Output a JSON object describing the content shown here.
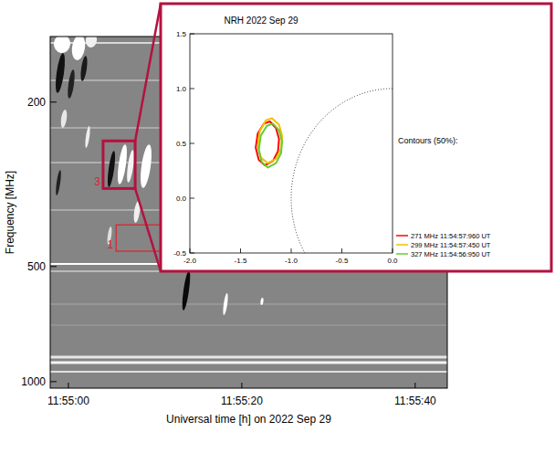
{
  "chart_data": [
    {
      "type": "spectrogram",
      "x_label": "Universal time [h] on 2022 Sep 29",
      "y_label": "Frequency [MHz]",
      "log": "y",
      "xlim": [
        42897.9,
        42943.7
      ],
      "xticks": [
        {
          "value": 42900,
          "label": "11:55:00"
        },
        {
          "value": 42920,
          "label": "11:55:20"
        },
        {
          "value": 42940,
          "label": "11:55:40"
        }
      ],
      "panels": [
        {
          "ylim": [
            140,
            480
          ],
          "yticks": [
            200
          ]
        },
        {
          "ylim": [
            495,
            1040
          ],
          "yticks": [
            500,
            1000
          ]
        }
      ],
      "annotations": [
        {
          "label": "3",
          "time": [
            42904.0,
            42907.7
          ],
          "frequency": [
            247,
            320
          ]
        },
        {
          "label": "1",
          "time": [
            42905.5,
            42911.0
          ],
          "frequency": [
            390,
            450
          ]
        }
      ]
    },
    {
      "type": "contour",
      "title": "NRH 2022 Sep 29",
      "legend_title": "Contours (50%):",
      "legend": "right",
      "xlim": [
        -2.0,
        0.0
      ],
      "ylim": [
        -0.5,
        1.5
      ],
      "xticks": [
        {
          "value": -2.0,
          "label": "-2.0"
        },
        {
          "value": -1.5,
          "label": "-1.5"
        },
        {
          "value": -1.0,
          "label": "-1.0"
        },
        {
          "value": -0.5,
          "label": "-0.5"
        },
        {
          "value": 0.0,
          "label": "0.0"
        }
      ],
      "yticks": [
        {
          "value": -0.5,
          "label": "-0.5"
        },
        {
          "value": 0.0,
          "label": "0.0"
        },
        {
          "value": 0.5,
          "label": "0.5"
        },
        {
          "value": 1.0,
          "label": "1.0"
        },
        {
          "value": 1.5,
          "label": "1.5"
        }
      ],
      "limb_radius": 1,
      "series": [
        {
          "name": "271 MHz 11:54:57:960 UT",
          "color": "#ff0000",
          "x": [
            -1.21,
            -1.15,
            -1.12,
            -1.13,
            -1.18,
            -1.26,
            -1.32,
            -1.35,
            -1.33,
            -1.27
          ],
          "values": [
            0.7,
            0.64,
            0.54,
            0.43,
            0.34,
            0.3,
            0.35,
            0.46,
            0.59,
            0.68
          ]
        },
        {
          "name": "299 MHz 11:54:57:450 UT",
          "color": "#f2c200",
          "x": [
            -1.19,
            -1.12,
            -1.09,
            -1.1,
            -1.15,
            -1.23,
            -1.3,
            -1.33,
            -1.31,
            -1.25
          ],
          "values": [
            0.73,
            0.67,
            0.57,
            0.45,
            0.36,
            0.32,
            0.37,
            0.48,
            0.61,
            0.71
          ]
        },
        {
          "name": "327 MHz 11:54:56:950 UT",
          "color": "#66cc33",
          "x": [
            -1.18,
            -1.12,
            -1.09,
            -1.1,
            -1.15,
            -1.23,
            -1.29,
            -1.32,
            -1.3,
            -1.24
          ],
          "values": [
            0.68,
            0.62,
            0.52,
            0.41,
            0.32,
            0.28,
            0.33,
            0.44,
            0.57,
            0.66
          ]
        }
      ]
    }
  ]
}
